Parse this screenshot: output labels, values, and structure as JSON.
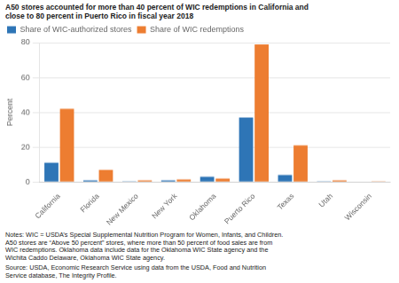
{
  "chart_data": {
    "type": "bar",
    "title": [
      "A50 stores accounted for more than 40 percent of WIC redemptions in California and",
      "close to 80 percent in Puerto Rico in fiscal year 2018"
    ],
    "ylabel": "Percent",
    "categories": [
      "California",
      "Florida",
      "New Mexico",
      "New York",
      "Oklahoma",
      "Puerto Rico",
      "Texas",
      "Utah",
      "Wisconsin"
    ],
    "series": [
      {
        "name": "Share of WIC-authorized stores",
        "color": "#2E75B6",
        "values": [
          11,
          1,
          0.5,
          1,
          3,
          37,
          4,
          0.5,
          0.3
        ]
      },
      {
        "name": "Share of WIC redemptions",
        "color": "#ED7D31",
        "values": [
          42,
          7,
          1,
          1.5,
          2,
          79,
          21,
          1,
          0.5
        ]
      }
    ],
    "ylim": [
      0,
      80
    ],
    "yticks": [
      0,
      20,
      40,
      60,
      80
    ],
    "grid": true,
    "legend": "upper left",
    "annotations": [
      "Notes: WIC = USDA’s Special Supplemental Nutrition Program for Women, Infants, and Children.\nA50 stores are “Above 50 percent” stores, where more than 50 percent of food sales are from\nWIC redemptions. Oklahoma data include data for the Oklahoma WIC State agency and the\nWichita Caddo Delaware, Oklahoma WIC State agency.",
      "Source: USDA, Economic Research Service using data from the USDA, Food and Nutrition\nService database, The Integrity Profile."
    ]
  }
}
